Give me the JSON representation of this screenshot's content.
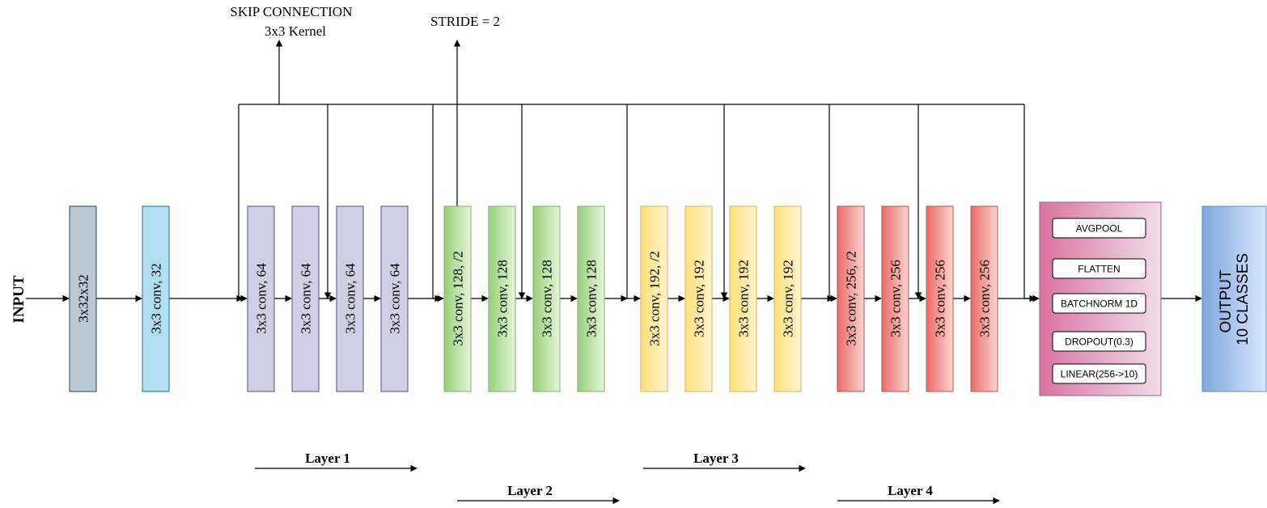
{
  "input_label": "INPUT",
  "output_label": [
    "OUTPUT",
    "10 CLASSES"
  ],
  "annotations": {
    "skip_connection": [
      "SKIP CONNECTION",
      "3x3 Kernel"
    ],
    "stride": "STRIDE = 2"
  },
  "blocks": [
    {
      "label": "3x32x32",
      "group": "input"
    },
    {
      "label": "3x3 conv, 32",
      "group": "stem"
    },
    {
      "label": "3x3 conv, 64",
      "group": "layer1"
    },
    {
      "label": "3x3 conv, 64",
      "group": "layer1"
    },
    {
      "label": "3x3 conv, 64",
      "group": "layer1"
    },
    {
      "label": "3x3 conv, 64",
      "group": "layer1"
    },
    {
      "label": "3x3 conv, 128, /2",
      "group": "layer2"
    },
    {
      "label": "3x3 conv, 128",
      "group": "layer2"
    },
    {
      "label": "3x3 conv, 128",
      "group": "layer2"
    },
    {
      "label": "3x3 conv, 128",
      "group": "layer2"
    },
    {
      "label": "3x3 conv, 192, /2",
      "group": "layer3"
    },
    {
      "label": "3x3 conv, 192",
      "group": "layer3"
    },
    {
      "label": "3x3 conv, 192",
      "group": "layer3"
    },
    {
      "label": "3x3 conv, 192",
      "group": "layer3"
    },
    {
      "label": "3x3 conv, 256, /2",
      "group": "layer4"
    },
    {
      "label": "3x3 conv, 256",
      "group": "layer4"
    },
    {
      "label": "3x3 conv, 256",
      "group": "layer4"
    },
    {
      "label": "3x3 conv, 256",
      "group": "layer4"
    }
  ],
  "head": [
    "AVGPOOL",
    "FLATTEN",
    "BATCHNORM 1D",
    "DROPOUT(0.3)",
    "LINEAR(256->10)"
  ],
  "layer_labels": [
    "Layer 1",
    "Layer 2",
    "Layer 3",
    "Layer 4"
  ],
  "colors": {
    "input": "#bac8d3",
    "stem": "#b1ddf0",
    "layer1": "#d0cee2",
    "layer2": "#97d077",
    "layer3": "#ffe07a",
    "layer4": "#ea6b66",
    "head": "#d8739f",
    "output": "#7ea6e0",
    "line": "#000000"
  }
}
